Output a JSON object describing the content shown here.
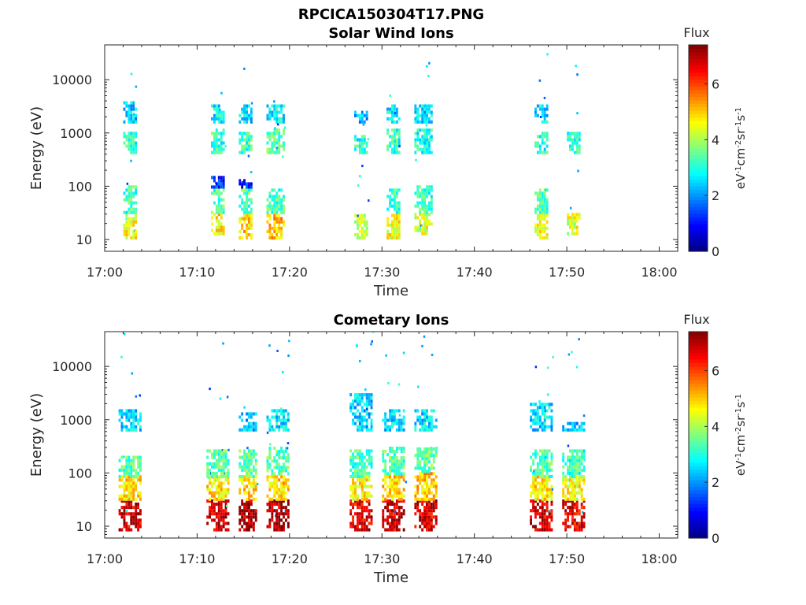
{
  "figure_title": "RPCICA150304T17.PNG",
  "colormap": "jet",
  "chart_data": [
    {
      "type": "heatmap",
      "title": "Solar Wind Ions",
      "xlabel": "Time",
      "ylabel": "Energy (eV)",
      "yscale": "log",
      "xlim": [
        "17:00",
        "18:02"
      ],
      "ylim": [
        6,
        45000
      ],
      "xticks": [
        "17:00",
        "17:10",
        "17:20",
        "17:30",
        "17:40",
        "17:50",
        "18:00"
      ],
      "yticks": [
        10,
        100,
        1000,
        10000
      ],
      "ytick_labels": [
        "10",
        "100",
        "1000",
        "10000"
      ],
      "colorbar": {
        "title": "Flux",
        "label": "eV-1cm-2sr-1s-1",
        "ticks": [
          "0",
          "2",
          "4",
          "6"
        ],
        "range": [
          0,
          7.4
        ]
      },
      "grid": false,
      "clusters": [
        {
          "start": "17:02:00",
          "end": "17:03:30",
          "hi": [
            {
              "emin": 10,
              "emax": 30,
              "v": 4.5
            },
            {
              "emin": 30,
              "emax": 100,
              "v": 3.2
            },
            {
              "emin": 400,
              "emax": 1000,
              "v": 3.0
            },
            {
              "emin": 1500,
              "emax": 3500,
              "v": 2.4
            }
          ]
        },
        {
          "start": "17:11:30",
          "end": "17:13:00",
          "hi": [
            {
              "emin": 12,
              "emax": 30,
              "v": 4.8
            },
            {
              "emin": 30,
              "emax": 80,
              "v": 3.4
            },
            {
              "emin": 90,
              "emax": 150,
              "v": 1.2
            },
            {
              "emin": 400,
              "emax": 1200,
              "v": 3.1
            },
            {
              "emin": 1500,
              "emax": 3000,
              "v": 2.6
            }
          ]
        },
        {
          "start": "17:14:30",
          "end": "17:16:00",
          "hi": [
            {
              "emin": 10,
              "emax": 28,
              "v": 5.0
            },
            {
              "emin": 30,
              "emax": 90,
              "v": 3.3
            },
            {
              "emin": 90,
              "emax": 130,
              "v": 1.0
            },
            {
              "emin": 400,
              "emax": 1000,
              "v": 3.2
            },
            {
              "emin": 1500,
              "emax": 3000,
              "v": 2.5
            }
          ]
        },
        {
          "start": "17:17:30",
          "end": "17:19:30",
          "hi": [
            {
              "emin": 10,
              "emax": 30,
              "v": 5.2
            },
            {
              "emin": 30,
              "emax": 80,
              "v": 3.3
            },
            {
              "emin": 400,
              "emax": 1100,
              "v": 3.4
            },
            {
              "emin": 1500,
              "emax": 3000,
              "v": 2.7
            }
          ]
        },
        {
          "start": "17:27:00",
          "end": "17:28:30",
          "hi": [
            {
              "emin": 10,
              "emax": 30,
              "v": 4.2
            },
            {
              "emin": 400,
              "emax": 900,
              "v": 3.0
            },
            {
              "emin": 1500,
              "emax": 2500,
              "v": 2.2
            }
          ]
        },
        {
          "start": "17:30:30",
          "end": "17:32:00",
          "hi": [
            {
              "emin": 10,
              "emax": 30,
              "v": 4.6
            },
            {
              "emin": 30,
              "emax": 90,
              "v": 3.1
            },
            {
              "emin": 400,
              "emax": 1100,
              "v": 3.1
            },
            {
              "emin": 1500,
              "emax": 3000,
              "v": 2.6
            }
          ]
        },
        {
          "start": "17:33:30",
          "end": "17:35:30",
          "hi": [
            {
              "emin": 12,
              "emax": 30,
              "v": 4.4
            },
            {
              "emin": 30,
              "emax": 100,
              "v": 3.2
            },
            {
              "emin": 400,
              "emax": 1200,
              "v": 3.0
            },
            {
              "emin": 1500,
              "emax": 3200,
              "v": 2.5
            }
          ]
        },
        {
          "start": "17:46:30",
          "end": "17:48:00",
          "hi": [
            {
              "emin": 10,
              "emax": 30,
              "v": 4.5
            },
            {
              "emin": 30,
              "emax": 90,
              "v": 3.3
            },
            {
              "emin": 400,
              "emax": 1000,
              "v": 3.0
            },
            {
              "emin": 1500,
              "emax": 3000,
              "v": 2.6
            }
          ]
        },
        {
          "start": "17:50:00",
          "end": "17:51:30",
          "hi": [
            {
              "emin": 12,
              "emax": 28,
              "v": 4.4
            },
            {
              "emin": 400,
              "emax": 1000,
              "v": 3.1
            }
          ]
        }
      ]
    },
    {
      "type": "heatmap",
      "title": "Cometary Ions",
      "xlabel": "Time",
      "ylabel": "Energy (eV)",
      "yscale": "log",
      "xlim": [
        "17:00",
        "18:02"
      ],
      "ylim": [
        6,
        45000
      ],
      "xticks": [
        "17:00",
        "17:10",
        "17:20",
        "17:30",
        "17:40",
        "17:50",
        "18:00"
      ],
      "yticks": [
        10,
        100,
        1000,
        10000
      ],
      "ytick_labels": [
        "10",
        "100",
        "1000",
        "10000"
      ],
      "colorbar": {
        "title": "Flux",
        "label": "eV-1cm-2sr-1s-1",
        "ticks": [
          "0",
          "2",
          "4",
          "6"
        ],
        "range": [
          0,
          7.4
        ]
      },
      "grid": false,
      "clusters": [
        {
          "start": "17:01:30",
          "end": "17:04:00",
          "hi": [
            {
              "emin": 8,
              "emax": 30,
              "v": 6.8
            },
            {
              "emin": 30,
              "emax": 80,
              "v": 4.8
            },
            {
              "emin": 80,
              "emax": 200,
              "v": 3.4
            },
            {
              "emin": 600,
              "emax": 1400,
              "v": 2.5
            }
          ]
        },
        {
          "start": "17:11:00",
          "end": "17:13:30",
          "hi": [
            {
              "emin": 8,
              "emax": 30,
              "v": 6.9
            },
            {
              "emin": 30,
              "emax": 80,
              "v": 4.8
            },
            {
              "emin": 80,
              "emax": 250,
              "v": 3.4
            }
          ]
        },
        {
          "start": "17:14:30",
          "end": "17:16:30",
          "hi": [
            {
              "emin": 8,
              "emax": 30,
              "v": 7.0
            },
            {
              "emin": 30,
              "emax": 80,
              "v": 4.9
            },
            {
              "emin": 80,
              "emax": 250,
              "v": 3.5
            },
            {
              "emin": 600,
              "emax": 1300,
              "v": 2.4
            }
          ]
        },
        {
          "start": "17:17:30",
          "end": "17:20:00",
          "hi": [
            {
              "emin": 8,
              "emax": 30,
              "v": 7.1
            },
            {
              "emin": 30,
              "emax": 90,
              "v": 5.0
            },
            {
              "emin": 90,
              "emax": 300,
              "v": 3.4
            },
            {
              "emin": 600,
              "emax": 1400,
              "v": 2.6
            }
          ]
        },
        {
          "start": "17:26:30",
          "end": "17:29:00",
          "hi": [
            {
              "emin": 8,
              "emax": 30,
              "v": 6.7
            },
            {
              "emin": 30,
              "emax": 80,
              "v": 4.7
            },
            {
              "emin": 80,
              "emax": 250,
              "v": 3.3
            },
            {
              "emin": 600,
              "emax": 2800,
              "v": 2.4
            }
          ]
        },
        {
          "start": "17:30:00",
          "end": "17:32:30",
          "hi": [
            {
              "emin": 8,
              "emax": 30,
              "v": 6.9
            },
            {
              "emin": 30,
              "emax": 90,
              "v": 4.9
            },
            {
              "emin": 90,
              "emax": 300,
              "v": 3.4
            },
            {
              "emin": 600,
              "emax": 1500,
              "v": 2.5
            }
          ]
        },
        {
          "start": "17:33:30",
          "end": "17:36:00",
          "hi": [
            {
              "emin": 8,
              "emax": 30,
              "v": 6.8
            },
            {
              "emin": 30,
              "emax": 100,
              "v": 5.0
            },
            {
              "emin": 100,
              "emax": 300,
              "v": 3.5
            },
            {
              "emin": 600,
              "emax": 1400,
              "v": 2.5
            }
          ]
        },
        {
          "start": "17:46:00",
          "end": "17:48:30",
          "hi": [
            {
              "emin": 8,
              "emax": 30,
              "v": 6.8
            },
            {
              "emin": 30,
              "emax": 80,
              "v": 4.8
            },
            {
              "emin": 80,
              "emax": 250,
              "v": 3.4
            },
            {
              "emin": 600,
              "emax": 2000,
              "v": 2.5
            }
          ]
        },
        {
          "start": "17:49:30",
          "end": "17:52:00",
          "hi": [
            {
              "emin": 8,
              "emax": 30,
              "v": 6.6
            },
            {
              "emin": 30,
              "emax": 80,
              "v": 4.6
            },
            {
              "emin": 80,
              "emax": 250,
              "v": 3.2
            },
            {
              "emin": 600,
              "emax": 900,
              "v": 2.3
            }
          ]
        }
      ]
    }
  ]
}
